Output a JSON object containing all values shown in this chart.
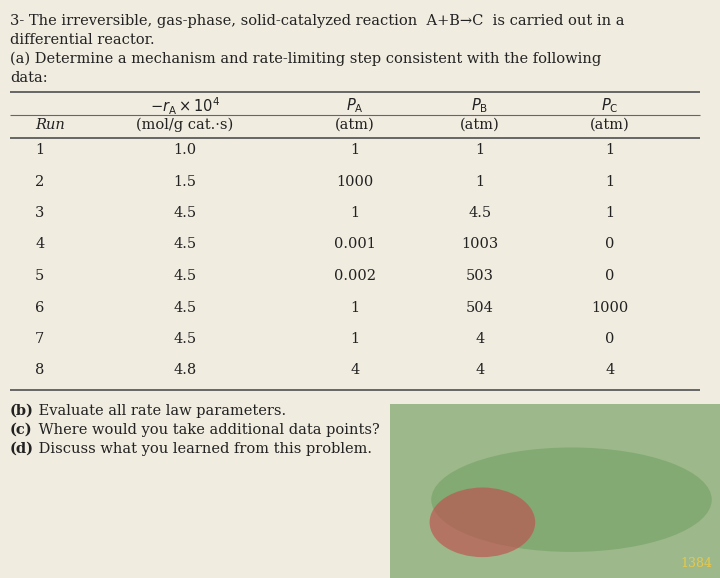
{
  "title_lines": [
    "3- The irreversible, gas-phase, solid-catalyzed reaction  A+B→C  is carried out in a",
    "differential reactor.",
    "(a) Determine a mechanism and rate-limiting step consistent with the following",
    "data:"
  ],
  "rows": [
    [
      "1",
      "1.0",
      "1",
      "1",
      "1"
    ],
    [
      "2",
      "1.5",
      "1000",
      "1",
      "1"
    ],
    [
      "3",
      "4.5",
      "1",
      "4.5",
      "1"
    ],
    [
      "4",
      "4.5",
      "0.001",
      "1003",
      "0"
    ],
    [
      "5",
      "4.5",
      "0.002",
      "503",
      "0"
    ],
    [
      "6",
      "4.5",
      "1",
      "504",
      "1000"
    ],
    [
      "7",
      "4.5",
      "1",
      "4",
      "0"
    ],
    [
      "8",
      "4.8",
      "4",
      "4",
      "4"
    ]
  ],
  "footer_lines": [
    "(b) Evaluate all rate law parameters.",
    "(c) Where would you take additional data points?",
    "(d) Discuss what you learned from this problem."
  ],
  "bg_color": "#f0ece0",
  "text_color": "#222222",
  "line_color": "#666666",
  "fs_body": 10.5,
  "fs_table": 10.5,
  "img_bg": "#9db88a",
  "img_ellipse1": "#7aa66b",
  "img_ellipse2": "#c05050",
  "img_text": "#e8c84a",
  "img_num": "1384"
}
